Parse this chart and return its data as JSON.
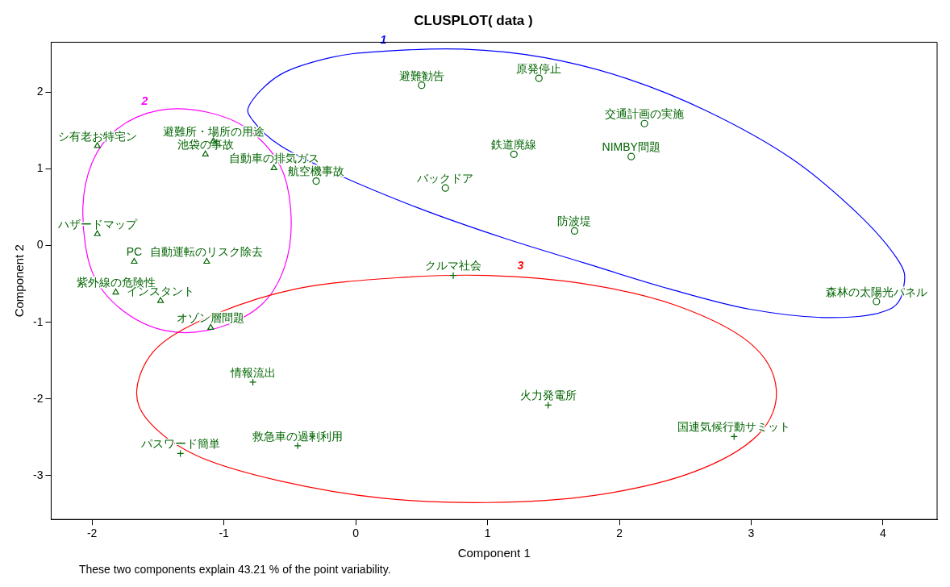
{
  "chart_data": {
    "type": "scatter",
    "title": "CLUSPLOT( data )",
    "xlabel": "Component 1",
    "ylabel": "Component 2",
    "xlim": [
      -2.31,
      4.41
    ],
    "ylim": [
      -3.57,
      2.65
    ],
    "xticks": [
      -2,
      -1,
      0,
      1,
      2,
      3,
      4
    ],
    "yticks": [
      -3,
      -2,
      -1,
      0,
      1,
      2
    ],
    "grid": false,
    "series": [
      {
        "type": "scatter",
        "color": "#006400",
        "marker": "circle",
        "x": [
          0.5,
          1.39,
          2.19,
          1.2,
          2.09,
          0.68,
          -0.3,
          1.66,
          3.95
        ],
        "values": [
          2.09,
          2.18,
          1.59,
          1.19,
          1.16,
          0.75,
          0.84,
          0.19,
          -0.73
        ]
      },
      {
        "type": "scatter",
        "color": "#006400",
        "marker": "triangle",
        "x": [
          -1.96,
          -1.08,
          -1.14,
          -0.62,
          -1.96,
          -1.68,
          -1.13,
          -1.82,
          -1.48,
          -1.1
        ],
        "values": [
          1.3,
          1.36,
          1.19,
          1.01,
          0.15,
          -0.21,
          -0.21,
          -0.61,
          -0.72,
          -1.07
        ]
      },
      {
        "type": "scatter",
        "color": "#006400",
        "marker": "cross",
        "x": [
          0.74,
          -0.78,
          1.46,
          2.87,
          -1.33,
          -0.44
        ],
        "values": [
          -0.39,
          -1.78,
          -2.08,
          -2.49,
          -2.71,
          -2.61
        ]
      }
    ],
    "annotations": [
      "1",
      "2",
      "3",
      {
        "text": "避難勧告",
        "x": 0.5,
        "y": 2.09
      },
      {
        "text": "原発停止",
        "x": 1.39,
        "y": 2.18
      },
      {
        "text": "交通計画の実施",
        "x": 2.19,
        "y": 1.59
      },
      {
        "text": "鉄道廃線",
        "x": 1.2,
        "y": 1.19
      },
      {
        "text": "NIMBY問題",
        "x": 2.09,
        "y": 1.16
      },
      {
        "text": "バックドア",
        "x": 0.68,
        "y": 0.75
      },
      {
        "text": "航空機事故",
        "x": -0.3,
        "y": 0.84
      },
      {
        "text": "防波堤",
        "x": 1.66,
        "y": 0.19
      },
      {
        "text": "森林の太陽光パネル",
        "x": 3.95,
        "y": -0.73
      },
      {
        "text": "シ有老お特宅ン",
        "x": -1.96,
        "y": 1.3
      },
      {
        "text": "避難所・場所の用途",
        "x": -1.08,
        "y": 1.36
      },
      {
        "text": "池袋の事故",
        "x": -1.14,
        "y": 1.19
      },
      {
        "text": "自動車の排気ガス",
        "x": -0.62,
        "y": 1.01
      },
      {
        "text": "ハザードマップ",
        "x": -1.96,
        "y": 0.15
      },
      {
        "text": "PC",
        "x": -1.68,
        "y": -0.21
      },
      {
        "text": "自動運転のリスク除去",
        "x": -1.13,
        "y": -0.21
      },
      {
        "text": "紫外線の危険性",
        "x": -1.82,
        "y": -0.61
      },
      {
        "text": "インスタント",
        "x": -1.48,
        "y": -0.72
      },
      {
        "text": "オゾン層問題",
        "x": -1.1,
        "y": -1.07
      },
      {
        "text": "クルマ社会",
        "x": 0.74,
        "y": -0.39
      },
      {
        "text": "情報流出",
        "x": -0.78,
        "y": -1.78
      },
      {
        "text": "火力発電所",
        "x": 1.46,
        "y": -2.08
      },
      {
        "text": "国連気候行動サミット",
        "x": 2.87,
        "y": -2.49
      },
      {
        "text": "パスワード簡単",
        "x": -1.33,
        "y": -2.71
      },
      {
        "text": "救急車の過剰利用",
        "x": -0.44,
        "y": -2.61
      },
      "These two components explain 43.21 % of the point variability."
    ]
  }
}
